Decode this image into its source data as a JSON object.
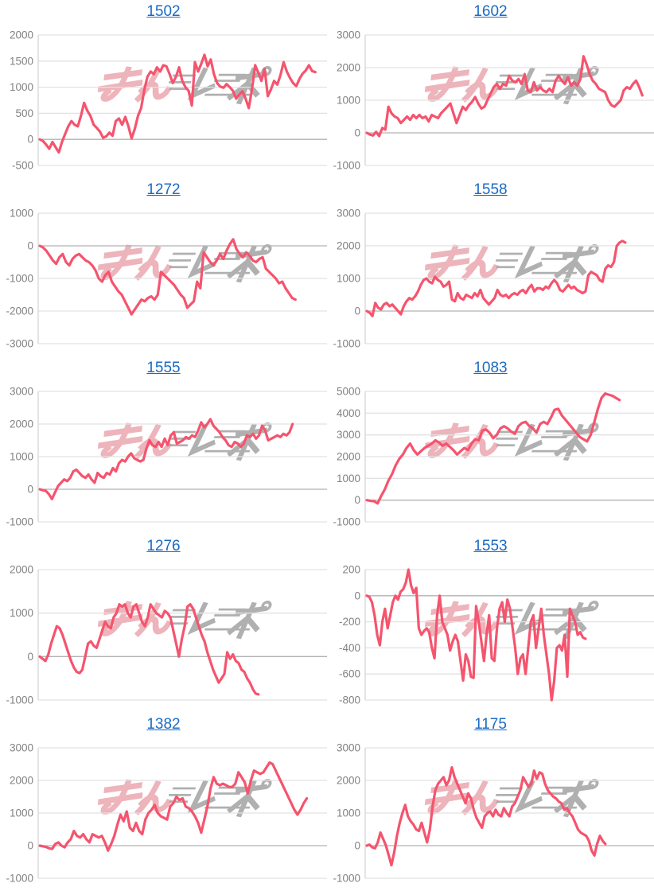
{
  "page": {
    "background": "#ffffff",
    "grid": {
      "columns": 2,
      "rows": 5
    }
  },
  "watermark": {
    "text": "みんレポ",
    "pink_part": "みん",
    "gray_part": "レポ",
    "pink_color": "#e9a2ab",
    "gray_color": "#a8a8a8"
  },
  "styles": {
    "line_color": "#f5546e",
    "title_link_color": "#1a6bc4",
    "grid_color": "#e2e2e2",
    "zero_line_color": "#b2b2b2",
    "axis_line_color": "#d6d6d6",
    "tick_label_color": "#828282"
  },
  "chart_data": [
    {
      "type": "line",
      "title": "1502",
      "ylim": [
        -500,
        2000
      ],
      "y_ticks": [
        2000,
        1500,
        1000,
        500,
        0,
        -500
      ],
      "grid": true,
      "legend": "none",
      "end_fraction": 0.97,
      "values": [
        0,
        -30,
        -100,
        -180,
        -50,
        -150,
        -250,
        -50,
        100,
        250,
        350,
        280,
        250,
        450,
        700,
        550,
        450,
        280,
        220,
        150,
        30,
        60,
        130,
        70,
        350,
        400,
        280,
        430,
        250,
        20,
        200,
        450,
        600,
        950,
        1200,
        1300,
        1250,
        1380,
        1300,
        1420,
        1400,
        1250,
        1080,
        1200,
        1380,
        1120,
        1000,
        930,
        650,
        1480,
        1300,
        1450,
        1620,
        1400,
        1530,
        1250,
        1080,
        1010,
        990,
        1060,
        1000,
        930,
        780,
        860,
        920,
        780,
        600,
        960,
        1420,
        1280,
        1120,
        1350,
        830,
        960,
        1120,
        1050,
        1230,
        1480,
        1300,
        1180,
        1080,
        1020,
        1160,
        1260,
        1320,
        1420,
        1310,
        1290
      ]
    },
    {
      "type": "line",
      "title": "1602",
      "ylim": [
        -1000,
        3000
      ],
      "y_ticks": [
        3000,
        2000,
        1000,
        0,
        -1000
      ],
      "grid": true,
      "legend": "none",
      "end_fraction": 0.97,
      "values": [
        0,
        -50,
        -80,
        30,
        -100,
        150,
        100,
        800,
        600,
        500,
        450,
        300,
        400,
        500,
        400,
        550,
        450,
        550,
        450,
        500,
        350,
        550,
        500,
        450,
        600,
        700,
        800,
        900,
        600,
        300,
        550,
        800,
        700,
        850,
        950,
        1100,
        900,
        750,
        800,
        1000,
        1200,
        1400,
        1500,
        1350,
        1500,
        1450,
        1750,
        1600,
        1550,
        1650,
        1500,
        1800,
        1300,
        1250,
        1550,
        1300,
        1400,
        1300,
        1250,
        1350,
        1250,
        1600,
        1750,
        1600,
        1500,
        1700,
        1450,
        1550,
        1450,
        1650,
        2350,
        2100,
        1800,
        1600,
        1500,
        1350,
        1300,
        1250,
        1000,
        850,
        800,
        900,
        1000,
        1300,
        1400,
        1350,
        1500,
        1600,
        1400,
        1150
      ]
    },
    {
      "type": "line",
      "title": "1272",
      "ylim": [
        -3000,
        1000
      ],
      "y_ticks": [
        1000,
        0,
        -1000,
        -2000,
        -3000
      ],
      "grid": true,
      "legend": "none",
      "end_fraction": 0.9,
      "values": [
        0,
        -50,
        -150,
        -300,
        -450,
        -550,
        -350,
        -250,
        -500,
        -600,
        -400,
        -300,
        -250,
        -350,
        -450,
        -500,
        -600,
        -750,
        -1000,
        -1100,
        -900,
        -800,
        -1100,
        -1250,
        -1400,
        -1500,
        -1700,
        -1900,
        -2100,
        -1950,
        -1800,
        -1650,
        -1700,
        -1600,
        -1550,
        -1650,
        -1500,
        -800,
        -900,
        -1000,
        -1100,
        -1200,
        -1350,
        -1500,
        -1600,
        -1900,
        -1800,
        -1700,
        -1100,
        -1300,
        -200,
        -350,
        -500,
        -600,
        -450,
        -250,
        -400,
        -150,
        50,
        200,
        -100,
        -250,
        -350,
        -200,
        -300,
        -450,
        -500,
        -400,
        -350,
        -700,
        -800,
        -900,
        -1000,
        -1150,
        -1100,
        -1300,
        -1450,
        -1600,
        -1650
      ]
    },
    {
      "type": "line",
      "title": "1558",
      "ylim": [
        -1000,
        3000
      ],
      "y_ticks": [
        3000,
        2000,
        1000,
        0,
        -1000
      ],
      "grid": true,
      "legend": "none",
      "end_fraction": 0.91,
      "values": [
        0,
        -50,
        -150,
        250,
        100,
        50,
        200,
        250,
        150,
        200,
        100,
        0,
        -100,
        150,
        300,
        400,
        350,
        450,
        600,
        800,
        950,
        1000,
        900,
        850,
        1050,
        950,
        900,
        750,
        800,
        900,
        350,
        300,
        550,
        400,
        350,
        500,
        450,
        400,
        550,
        450,
        650,
        400,
        300,
        200,
        300,
        400,
        650,
        500,
        450,
        500,
        400,
        500,
        550,
        500,
        600,
        650,
        550,
        700,
        800,
        600,
        700,
        700,
        650,
        750,
        700,
        850,
        950,
        850,
        650,
        600,
        700,
        800,
        700,
        750,
        650,
        600,
        550,
        600,
        1100,
        1200,
        1150,
        1100,
        950,
        900,
        1300,
        1400,
        1350,
        1500,
        2000,
        2100,
        2150,
        2100
      ]
    },
    {
      "type": "line",
      "title": "1555",
      "ylim": [
        -1000,
        3000
      ],
      "y_ticks": [
        3000,
        2000,
        1000,
        0,
        -1000
      ],
      "grid": true,
      "legend": "none",
      "end_fraction": 0.89,
      "values": [
        0,
        -30,
        -50,
        -150,
        -300,
        -100,
        100,
        200,
        300,
        250,
        350,
        550,
        600,
        500,
        400,
        350,
        450,
        300,
        200,
        500,
        400,
        350,
        500,
        450,
        650,
        550,
        800,
        900,
        850,
        1000,
        1100,
        950,
        900,
        850,
        900,
        1250,
        1500,
        1350,
        1300,
        1450,
        1300,
        1550,
        1350,
        1650,
        1750,
        1400,
        1450,
        1500,
        1600,
        1550,
        1650,
        1600,
        1800,
        2050,
        1900,
        2000,
        2150,
        1950,
        1850,
        1750,
        1600,
        1500,
        1350,
        1300,
        1450,
        1400,
        1300,
        1400,
        1650,
        1600,
        1700,
        1550,
        1650,
        1950,
        1800,
        1500,
        1550,
        1600,
        1650,
        1600,
        1700,
        1650,
        1750,
        2000
      ]
    },
    {
      "type": "line",
      "title": "1083",
      "ylim": [
        -1000,
        5000
      ],
      "y_ticks": [
        5000,
        4000,
        3000,
        2000,
        1000,
        0,
        -1000
      ],
      "grid": true,
      "legend": "none",
      "end_fraction": 0.89,
      "values": [
        0,
        -30,
        -50,
        -150,
        200,
        500,
        900,
        1200,
        1600,
        1900,
        2100,
        2400,
        2600,
        2300,
        2100,
        2250,
        2400,
        2500,
        2600,
        2750,
        2650,
        2500,
        2600,
        2450,
        2300,
        2100,
        2250,
        2400,
        2300,
        2600,
        2800,
        2750,
        3200,
        3250,
        3100,
        2850,
        3000,
        3300,
        3400,
        3300,
        3150,
        3050,
        3400,
        3550,
        3600,
        3400,
        3300,
        3100,
        3500,
        3600,
        3500,
        3800,
        4150,
        4200,
        3900,
        3700,
        3500,
        3300,
        3100,
        2900,
        2800,
        2700,
        3000,
        3600,
        4200,
        4700,
        4900,
        4850,
        4800,
        4700,
        4600
      ]
    },
    {
      "type": "line",
      "title": "1276",
      "ylim": [
        -1000,
        2000
      ],
      "y_ticks": [
        2000,
        1000,
        0,
        -1000
      ],
      "grid": true,
      "legend": "none",
      "end_fraction": 0.77,
      "values": [
        0,
        -50,
        -100,
        50,
        300,
        500,
        700,
        650,
        500,
        300,
        100,
        -100,
        -250,
        -350,
        -380,
        -300,
        0,
        300,
        350,
        250,
        200,
        400,
        600,
        800,
        700,
        650,
        900,
        1000,
        1200,
        1150,
        1200,
        1000,
        900,
        1150,
        1200,
        1000,
        800,
        700,
        900,
        1200,
        1100,
        1000,
        950,
        900,
        1050,
        1000,
        900,
        600,
        300,
        0,
        400,
        700,
        1150,
        1200,
        1100,
        900,
        700,
        500,
        350,
        100,
        -100,
        -300,
        -450,
        -600,
        -500,
        -400,
        100,
        -50,
        50,
        -100,
        -150,
        -300,
        -350,
        -500,
        -600,
        -750,
        -850,
        -870
      ]
    },
    {
      "type": "line",
      "title": "1553",
      "ylim": [
        -800,
        200
      ],
      "y_ticks": [
        200,
        0,
        -200,
        -400,
        -600,
        -800
      ],
      "grid": true,
      "legend": "none",
      "end_fraction": 0.77,
      "values": [
        0,
        -10,
        -50,
        -150,
        -300,
        -380,
        -200,
        -100,
        -250,
        -150,
        -50,
        0,
        -30,
        30,
        50,
        100,
        200,
        80,
        20,
        60,
        -250,
        -300,
        -270,
        -250,
        -280,
        -400,
        -480,
        -150,
        0,
        -200,
        -250,
        -300,
        -420,
        -350,
        -300,
        -350,
        -500,
        -650,
        -450,
        -500,
        -620,
        -630,
        -80,
        -200,
        -350,
        -500,
        -300,
        -150,
        -480,
        -500,
        -250,
        -100,
        -50,
        -200,
        -30,
        -100,
        -250,
        -400,
        -600,
        -480,
        -450,
        -600,
        -400,
        -200,
        -150,
        -400,
        -250,
        -100,
        -300,
        -450,
        -600,
        -800,
        -650,
        -400,
        -380,
        -420,
        -300,
        -620,
        -100,
        -150,
        -200,
        -300,
        -280,
        -320,
        -330
      ]
    },
    {
      "type": "line",
      "title": "1382",
      "ylim": [
        -1000,
        3000
      ],
      "y_ticks": [
        3000,
        2000,
        1000,
        0,
        -1000
      ],
      "grid": true,
      "legend": "none",
      "end_fraction": 0.94,
      "values": [
        0,
        -20,
        -40,
        -80,
        -100,
        50,
        100,
        0,
        -50,
        100,
        200,
        450,
        300,
        250,
        350,
        200,
        100,
        350,
        300,
        250,
        300,
        100,
        -150,
        50,
        300,
        650,
        950,
        750,
        1050,
        550,
        450,
        700,
        450,
        350,
        800,
        1000,
        1100,
        1250,
        1000,
        900,
        850,
        800,
        1200,
        1300,
        1500,
        1400,
        1450,
        1200,
        1150,
        1050,
        900,
        700,
        400,
        800,
        1200,
        1750,
        2100,
        1900,
        1850,
        1900,
        1850,
        1800,
        1800,
        1900,
        2250,
        2100,
        1950,
        1600,
        2000,
        2300,
        2250,
        2200,
        2250,
        2400,
        2550,
        2500,
        2300,
        2100,
        1900,
        1700,
        1500,
        1300,
        1100,
        950,
        1100,
        1300,
        1450
      ]
    },
    {
      "type": "line",
      "title": "1175",
      "ylim": [
        -1000,
        3000
      ],
      "y_ticks": [
        3000,
        2000,
        1000,
        0,
        -1000
      ],
      "grid": true,
      "legend": "none",
      "end_fraction": 0.84,
      "values": [
        0,
        30,
        -50,
        -80,
        100,
        400,
        200,
        0,
        -300,
        -600,
        -200,
        300,
        700,
        1000,
        1250,
        900,
        750,
        650,
        500,
        450,
        700,
        400,
        100,
        500,
        1200,
        1700,
        1900,
        2000,
        2100,
        1850,
        2000,
        2400,
        2100,
        1900,
        1700,
        1500,
        1300,
        1600,
        1450,
        1100,
        850,
        700,
        550,
        900,
        1000,
        1050,
        900,
        1100,
        950,
        900,
        1150,
        1000,
        900,
        1200,
        1300,
        1500,
        1700,
        2100,
        1950,
        1800,
        1900,
        2300,
        2050,
        2250,
        2200,
        1900,
        1700,
        1600,
        1500,
        1450,
        1350,
        1300,
        1100,
        1150,
        1000,
        900,
        700,
        500,
        400,
        350,
        300,
        150,
        -150,
        -300,
        50,
        300,
        150,
        50
      ]
    }
  ]
}
